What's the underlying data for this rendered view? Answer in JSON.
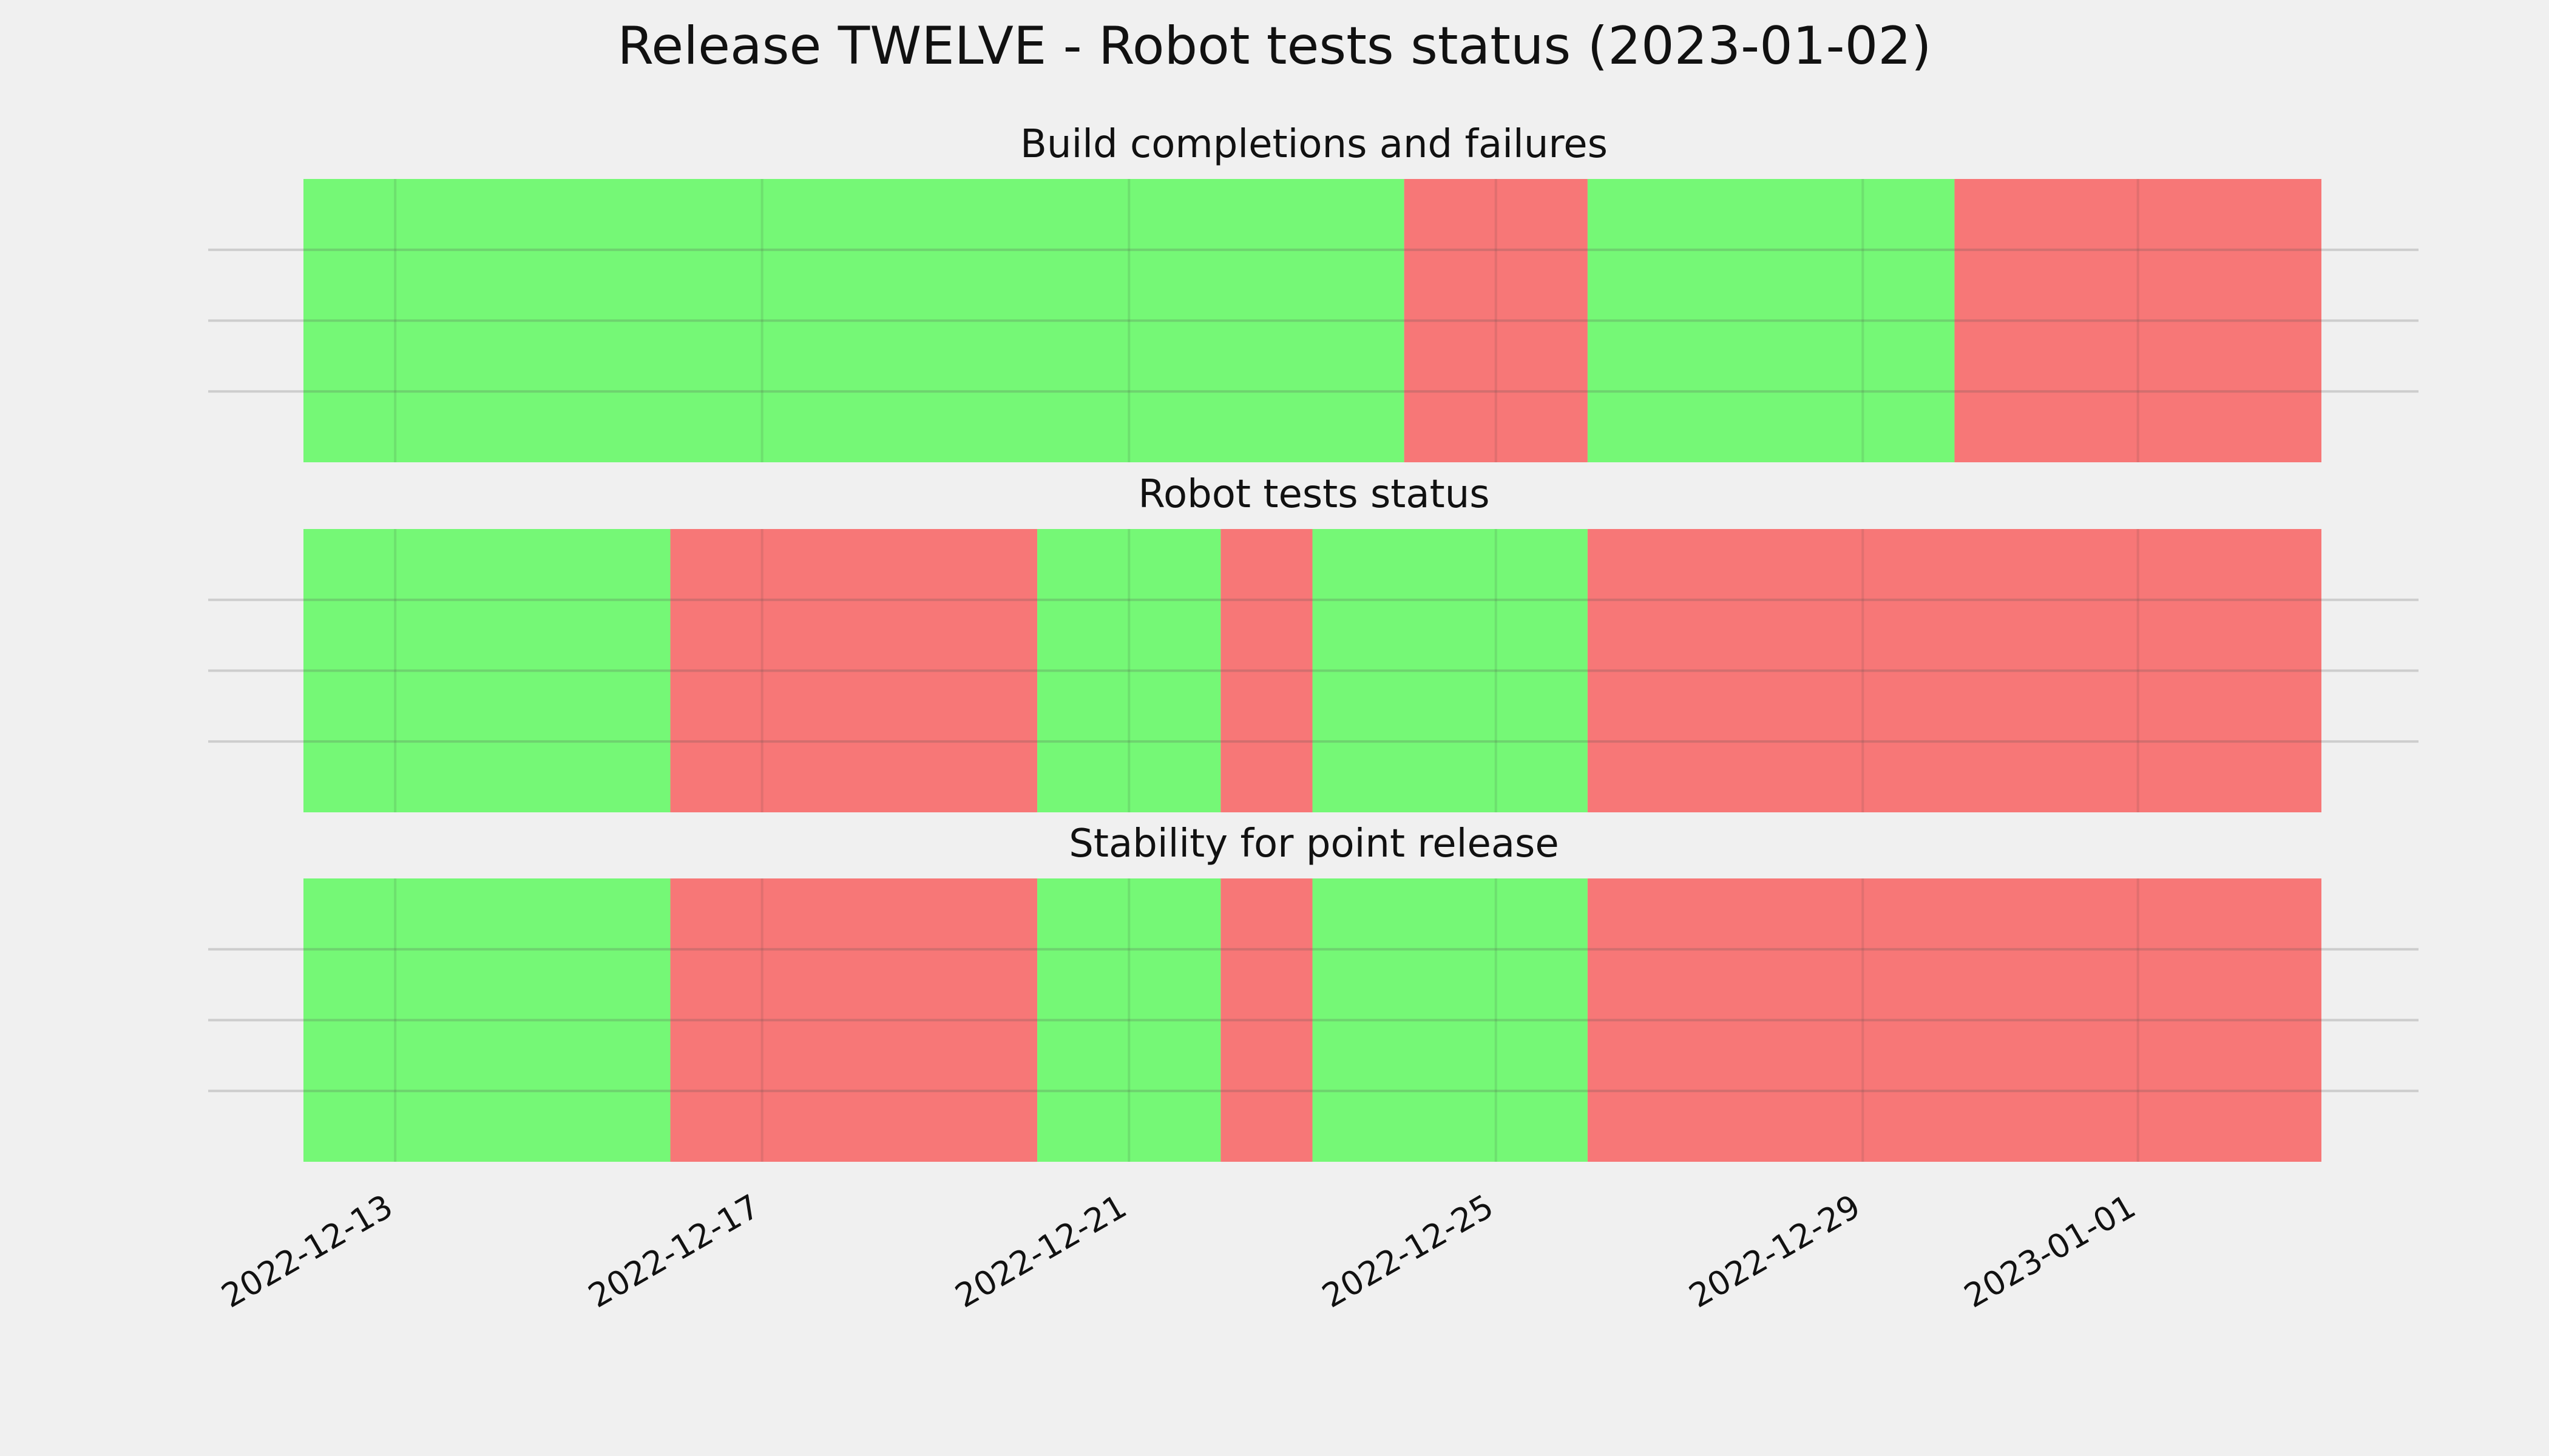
{
  "chart_data": {
    "type": "timeline",
    "title": "Release TWELVE - Robot tests status (2023-01-02)",
    "status_colors": {
      "pass": "#75f876",
      "fail": "#f77777"
    },
    "grid": true,
    "x_range": [
      "2022-12-12",
      "2023-01-03"
    ],
    "x_ticks": [
      "2022-12-13",
      "2022-12-17",
      "2022-12-21",
      "2022-12-25",
      "2022-12-29",
      "2023-01-01"
    ],
    "panels": [
      {
        "title": "Build completions and failures",
        "segments": [
          {
            "start": "2022-12-12",
            "end": "2022-12-24",
            "status": "pass"
          },
          {
            "start": "2022-12-24",
            "end": "2022-12-26",
            "status": "fail"
          },
          {
            "start": "2022-12-26",
            "end": "2022-12-30",
            "status": "pass"
          },
          {
            "start": "2022-12-30",
            "end": "2023-01-03",
            "status": "fail"
          }
        ]
      },
      {
        "title": "Robot tests status",
        "segments": [
          {
            "start": "2022-12-12",
            "end": "2022-12-16",
            "status": "pass"
          },
          {
            "start": "2022-12-16",
            "end": "2022-12-20",
            "status": "fail"
          },
          {
            "start": "2022-12-20",
            "end": "2022-12-22",
            "status": "pass"
          },
          {
            "start": "2022-12-22",
            "end": "2022-12-23",
            "status": "fail"
          },
          {
            "start": "2022-12-23",
            "end": "2022-12-26",
            "status": "pass"
          },
          {
            "start": "2022-12-26",
            "end": "2023-01-03",
            "status": "fail"
          }
        ]
      },
      {
        "title": "Stability for point release",
        "segments": [
          {
            "start": "2022-12-12",
            "end": "2022-12-16",
            "status": "pass"
          },
          {
            "start": "2022-12-16",
            "end": "2022-12-20",
            "status": "fail"
          },
          {
            "start": "2022-12-20",
            "end": "2022-12-22",
            "status": "pass"
          },
          {
            "start": "2022-12-22",
            "end": "2022-12-23",
            "status": "fail"
          },
          {
            "start": "2022-12-23",
            "end": "2022-12-26",
            "status": "pass"
          },
          {
            "start": "2022-12-26",
            "end": "2023-01-03",
            "status": "fail"
          }
        ]
      }
    ]
  }
}
